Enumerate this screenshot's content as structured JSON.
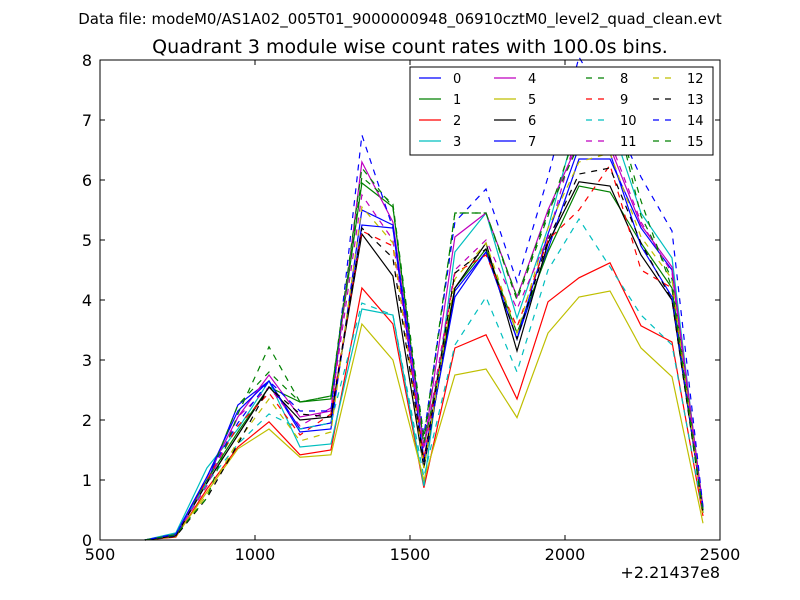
{
  "figure": {
    "suptitle": "Data file: modeM0/AS1A02_005T01_9000000948_06910cztM0_level2_quad_clean.evt"
  },
  "chart_data": {
    "type": "line",
    "title": "Quadrant 3 module wise count rates with 100.0s bins.",
    "xlabel": "",
    "ylabel": "",
    "xlim": [
      500,
      2500
    ],
    "ylim": [
      0,
      8
    ],
    "xticks": [
      500,
      1000,
      1500,
      2000,
      2500
    ],
    "yticks": [
      0,
      1,
      2,
      3,
      4,
      5,
      6,
      7,
      8
    ],
    "x_offset_label": "+2.21437e8",
    "x": [
      645,
      745,
      845,
      945,
      1045,
      1145,
      1245,
      1345,
      1445,
      1545,
      1645,
      1745,
      1845,
      1945,
      2045,
      2145,
      2245,
      2345,
      2445
    ],
    "legend_location": "top-right",
    "legend_columns": 4,
    "series": [
      {
        "name": "0",
        "color": "#0000ff",
        "dash": "solid",
        "values": [
          0,
          0.08,
          0.95,
          2.25,
          2.65,
          1.85,
          1.95,
          5.25,
          5.2,
          1.35,
          4.15,
          4.8,
          3.35,
          4.85,
          6.35,
          6.35,
          5.2,
          4.5,
          0.5
        ]
      },
      {
        "name": "1",
        "color": "#008000",
        "dash": "solid",
        "values": [
          0,
          0.1,
          1.0,
          1.8,
          2.55,
          2.3,
          2.35,
          5.95,
          5.55,
          1.55,
          4.2,
          4.85,
          3.45,
          4.8,
          5.9,
          5.8,
          4.95,
          4.2,
          0.45
        ]
      },
      {
        "name": "2",
        "color": "#ff0000",
        "dash": "solid",
        "values": [
          0,
          0.05,
          0.85,
          1.55,
          1.97,
          1.42,
          1.5,
          4.2,
          3.6,
          0.87,
          3.2,
          3.42,
          2.35,
          3.97,
          4.37,
          4.62,
          3.57,
          3.3,
          0.4
        ]
      },
      {
        "name": "3",
        "color": "#00bfbf",
        "dash": "solid",
        "values": [
          0,
          0.12,
          1.2,
          1.85,
          2.65,
          1.55,
          1.6,
          3.85,
          3.75,
          0.9,
          4.8,
          5.45,
          3.7,
          5.2,
          7.1,
          7.0,
          5.45,
          4.7,
          0.5
        ]
      },
      {
        "name": "4",
        "color": "#bf00bf",
        "dash": "solid",
        "values": [
          0,
          0.08,
          1.05,
          2.05,
          2.75,
          2.05,
          2.15,
          6.3,
          5.3,
          1.55,
          5.05,
          5.45,
          4.05,
          5.5,
          6.65,
          6.55,
          5.25,
          4.55,
          0.55
        ]
      },
      {
        "name": "5",
        "color": "#bfbf00",
        "dash": "solid",
        "values": [
          0,
          0.06,
          0.8,
          1.52,
          1.85,
          1.38,
          1.42,
          3.6,
          3.0,
          1.0,
          2.75,
          2.85,
          2.04,
          3.45,
          4.05,
          4.15,
          3.2,
          2.72,
          0.28
        ]
      },
      {
        "name": "6",
        "color": "#000000",
        "dash": "solid",
        "values": [
          0,
          0.07,
          0.95,
          1.75,
          2.55,
          2.0,
          2.05,
          5.1,
          4.4,
          1.2,
          4.2,
          4.95,
          3.15,
          4.95,
          5.97,
          5.9,
          4.75,
          4.0,
          0.5
        ]
      },
      {
        "name": "7",
        "color": "#0000ff",
        "dash": "solid",
        "values": [
          0,
          0.1,
          1.05,
          2.15,
          2.65,
          1.8,
          1.85,
          5.5,
          5.25,
          1.3,
          4.05,
          4.8,
          3.35,
          5.1,
          6.55,
          6.45,
          4.9,
          4.05,
          0.5
        ]
      },
      {
        "name": "8",
        "color": "#008000",
        "dash": "dashed",
        "values": [
          0,
          0.08,
          0.95,
          2.25,
          2.8,
          2.3,
          2.4,
          6.2,
          5.55,
          1.6,
          5.45,
          5.45,
          4.0,
          5.4,
          6.95,
          7.55,
          5.4,
          4.35,
          0.5
        ]
      },
      {
        "name": "9",
        "color": "#ff0000",
        "dash": "dashed",
        "values": [
          0,
          0.08,
          1.0,
          1.9,
          2.45,
          1.75,
          2.1,
          5.15,
          4.9,
          1.35,
          4.45,
          4.75,
          3.55,
          5.0,
          5.5,
          6.25,
          4.5,
          4.2,
          0.45
        ]
      },
      {
        "name": "10",
        "color": "#00bfbf",
        "dash": "dashed",
        "values": [
          0,
          0.1,
          0.95,
          1.6,
          2.1,
          1.85,
          1.95,
          3.95,
          3.75,
          1.05,
          3.25,
          4.05,
          2.8,
          4.5,
          5.35,
          4.55,
          3.75,
          3.25,
          0.45
        ]
      },
      {
        "name": "11",
        "color": "#bf00bf",
        "dash": "dashed",
        "values": [
          0,
          0.09,
          0.9,
          2.05,
          2.55,
          1.9,
          2.2,
          5.75,
          5.0,
          1.5,
          4.5,
          5.0,
          3.85,
          5.05,
          6.9,
          6.65,
          5.3,
          4.45,
          0.5
        ]
      },
      {
        "name": "12",
        "color": "#bfbf00",
        "dash": "dashed",
        "values": [
          0,
          0.06,
          0.75,
          1.65,
          2.35,
          1.65,
          1.8,
          5.55,
          4.95,
          1.2,
          4.35,
          4.95,
          3.45,
          5.2,
          6.3,
          6.45,
          5.05,
          4.35,
          0.4
        ]
      },
      {
        "name": "13",
        "color": "#000000",
        "dash": "dashed",
        "values": [
          0,
          0.06,
          0.7,
          1.6,
          2.55,
          2.1,
          2.05,
          5.2,
          4.7,
          1.3,
          4.45,
          4.85,
          3.35,
          5.0,
          6.1,
          6.2,
          4.95,
          4.0,
          0.45
        ]
      },
      {
        "name": "14",
        "color": "#0000ff",
        "dash": "dashed",
        "values": [
          0,
          0.08,
          1.05,
          1.95,
          2.65,
          2.15,
          2.15,
          6.75,
          5.2,
          1.75,
          5.3,
          5.85,
          4.3,
          6.05,
          8.05,
          7.15,
          6.05,
          5.15,
          0.55
        ]
      },
      {
        "name": "15",
        "color": "#008000",
        "dash": "dashed",
        "values": [
          0,
          0.09,
          0.7,
          2.1,
          3.22,
          2.3,
          2.4,
          6.05,
          5.6,
          1.7,
          5.45,
          5.45,
          4.05,
          5.45,
          6.6,
          7.5,
          5.65,
          4.2,
          0.45
        ]
      }
    ]
  }
}
